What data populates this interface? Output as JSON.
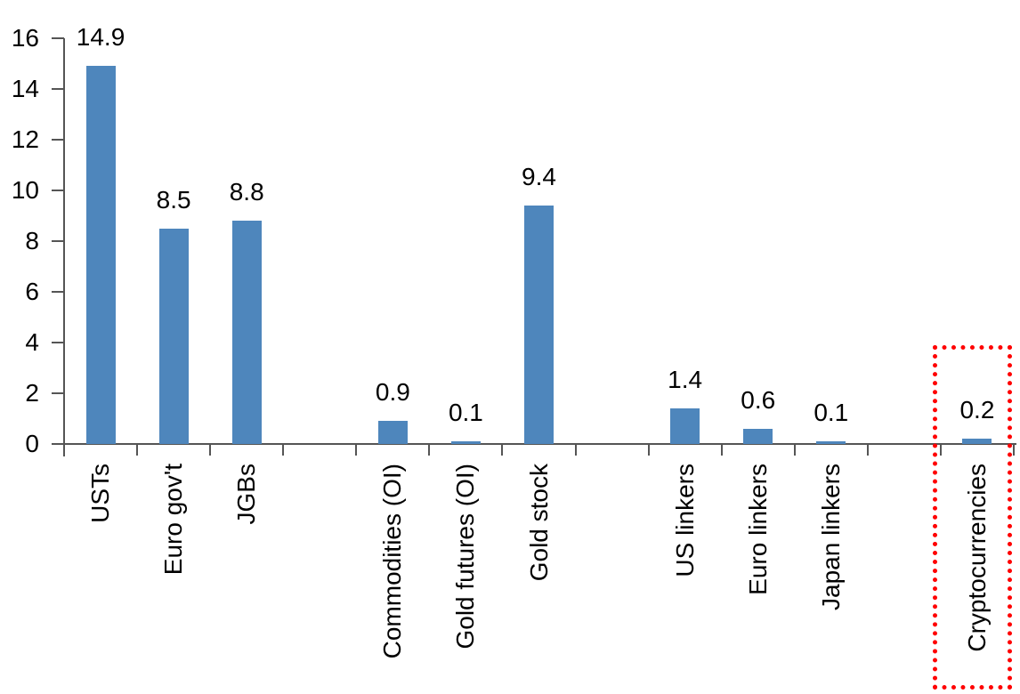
{
  "chart_data": {
    "type": "bar",
    "title": "",
    "categories": [
      "USTs",
      "Euro gov't",
      "JGBs",
      "Commodities (OI)",
      "Gold futures (OI)",
      "Gold stock",
      "US linkers",
      "Euro linkers",
      "Japan linkers",
      "Cryptocurrencies"
    ],
    "values": [
      14.9,
      8.5,
      8.8,
      0.9,
      0.1,
      9.4,
      1.4,
      0.6,
      0.1,
      0.2
    ],
    "data_labels": [
      "14.9",
      "8.5",
      "8.8",
      "0.9",
      "0.1",
      "9.4",
      "1.4",
      "0.6",
      "0.1",
      "0.2"
    ],
    "slot_indices": [
      0,
      1,
      2,
      4,
      5,
      6,
      8,
      9,
      10,
      12
    ],
    "total_slots": 13,
    "y_ticks": [
      "16",
      "14",
      "12",
      "10",
      "8",
      "6",
      "4",
      "2",
      "0"
    ],
    "y_tick_values": [
      16,
      14,
      12,
      10,
      8,
      6,
      4,
      2,
      0
    ],
    "ylim": [
      0,
      16
    ],
    "xlabel": "",
    "ylabel": "",
    "grid": false,
    "legend": "none",
    "data_labels_shown": true,
    "x_labels_rotated_degrees": -90,
    "bar_color": "#4E86BC",
    "axis_color": "#555555",
    "text_color": "#000000",
    "highlight": {
      "target": "Cryptocurrencies",
      "shape": "dotted-rectangle",
      "color": "#FF0000"
    }
  }
}
